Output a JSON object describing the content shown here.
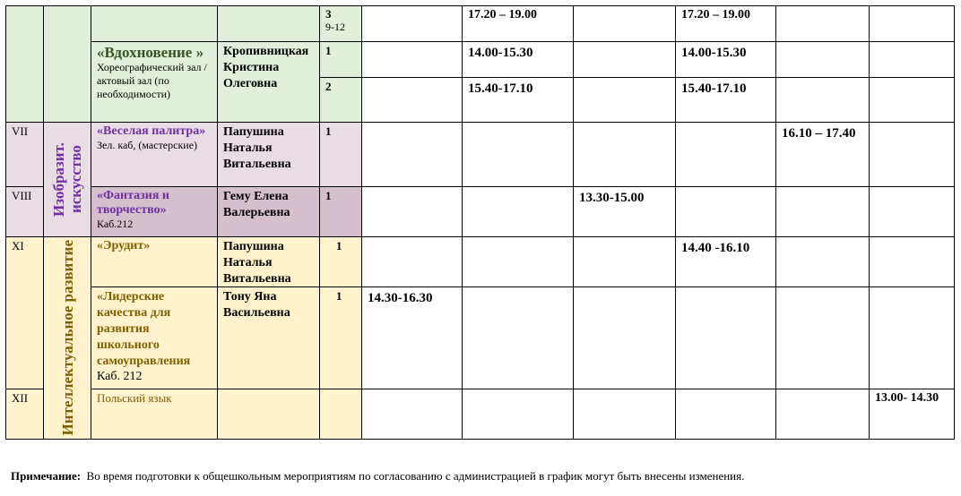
{
  "green": {
    "row0": {
      "groups": "3",
      "groups_sub": "9-12",
      "t2": "17.20 – 19.00",
      "t4": "17.20 – 19.00"
    },
    "club": {
      "name": "«Вдохновение »",
      "room": "Хореографический зал / актовый зал (по необходимости)",
      "teacher": "Кропивницкая Кристина Олеговна"
    },
    "row1": {
      "groups": "1",
      "t2": "14.00-15.30",
      "t4": "14.00-15.30"
    },
    "row2": {
      "groups": "2",
      "t2": "15.40-17.10",
      "t4": "15.40-17.10"
    }
  },
  "art": {
    "category": "Изобразит. искусство",
    "rows": [
      {
        "num": "VII",
        "name": "«Веселая палитра»",
        "room": "Зел. каб, (мастерские)",
        "teacher": "Папушина Наталья Витальевна",
        "groups": "1",
        "time": "16.10 – 17.40"
      },
      {
        "num": "VIII",
        "name": "«Фантазия и творчество»",
        "room": "Каб.212",
        "teacher": "Гему Елена Валерьевна",
        "groups": "1",
        "time": "13.30-15.00"
      }
    ]
  },
  "intel": {
    "category": "Интеллектуальное развитие",
    "num1": "XI",
    "num2": "XII",
    "rows": [
      {
        "name": "«Эрудит»",
        "teacher": "Папушина Наталья Витальевна",
        "groups": "1",
        "time": "14.40 -16.10"
      },
      {
        "name": "«Лидерские качества для развития школьного самоуправления",
        "room": "Каб. 212",
        "teacher": "Тону Яна Васильевна",
        "groups": "1",
        "time": "14.30-16.30"
      },
      {
        "name": "Польский язык",
        "time": "13.00- 14.30"
      }
    ]
  },
  "note": {
    "label": "Примечание:",
    "text": "Во время подготовки к общешкольным мероприятиям по согласованию с  администрацией в  график могут быть  внесены изменения."
  }
}
